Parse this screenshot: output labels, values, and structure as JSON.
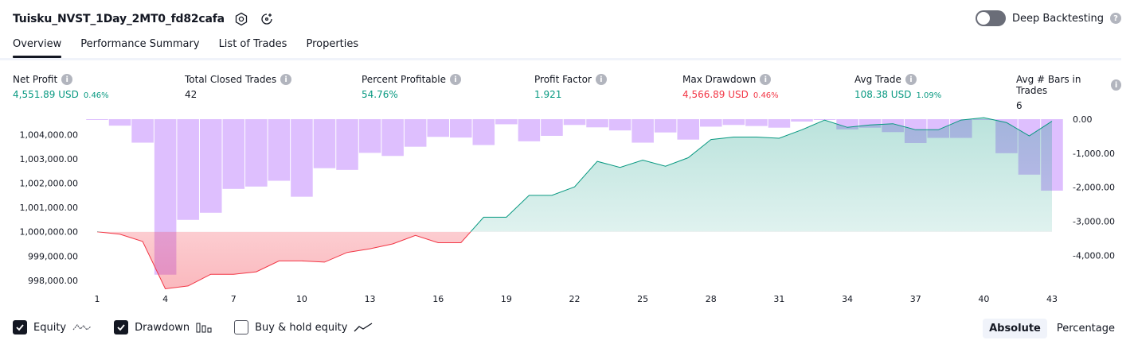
{
  "header": {
    "title": "Tuisku_NVST_1Day_2MT0_fd82cafa"
  },
  "deep_backtesting": {
    "label": "Deep Backtesting"
  },
  "tabs": [
    {
      "label": "Overview"
    },
    {
      "label": "Performance Summary"
    },
    {
      "label": "List of Trades"
    },
    {
      "label": "Properties"
    }
  ],
  "metrics": [
    {
      "label": "Net Profit",
      "value": "4,551.89 USD",
      "pct": "0.46%",
      "color": "green"
    },
    {
      "label": "Total Closed Trades",
      "value": "42",
      "pct": "",
      "color": "black"
    },
    {
      "label": "Percent Profitable",
      "value": "54.76%",
      "pct": "",
      "color": "green"
    },
    {
      "label": "Profit Factor",
      "value": "1.921",
      "pct": "",
      "color": "green"
    },
    {
      "label": "Max Drawdown",
      "value": "4,566.89 USD",
      "pct": "0.46%",
      "color": "red"
    },
    {
      "label": "Avg Trade",
      "value": "108.38 USD",
      "pct": "1.09%",
      "color": "green"
    },
    {
      "label": "Avg # Bars in Trades",
      "value": "6",
      "pct": "",
      "color": "black"
    }
  ],
  "chart_data": {
    "type": "line",
    "x": [
      1,
      2,
      3,
      4,
      5,
      6,
      7,
      8,
      9,
      10,
      11,
      12,
      13,
      14,
      15,
      16,
      17,
      18,
      19,
      20,
      21,
      22,
      23,
      24,
      25,
      26,
      27,
      28,
      29,
      30,
      31,
      32,
      33,
      34,
      35,
      36,
      37,
      38,
      39,
      40,
      41,
      42,
      43
    ],
    "x_tick_labels": [
      "1",
      "4",
      "7",
      "10",
      "13",
      "16",
      "19",
      "22",
      "25",
      "28",
      "31",
      "34",
      "37",
      "40",
      "43"
    ],
    "baseline": 1000000,
    "left_axis": {
      "ticks": [
        "1,004,000.00",
        "1,003,000.00",
        "1,002,000.00",
        "1,001,000.00",
        "1,000,000.00",
        "999,000.00",
        "998,000.00"
      ],
      "ylim": [
        997700,
        1004800
      ]
    },
    "right_axis": {
      "ticks": [
        "0.00",
        "-1,000.00",
        "-2,000.00",
        "-3,000.00",
        "-4,000.00"
      ],
      "ylim": [
        -4950,
        0
      ]
    },
    "series": [
      {
        "values": [
          1000000,
          999900,
          999600,
          997650,
          997770,
          998250,
          998250,
          998350,
          998800,
          998800,
          998750,
          999150,
          999300,
          999500,
          999850,
          999550,
          999550,
          1000600,
          1000600,
          1001500,
          1001500,
          1001850,
          1002900,
          1002650,
          1002950,
          1002700,
          1003050,
          1003800,
          1003900,
          1003900,
          1003850,
          1004200,
          1004600,
          1004300,
          1004400,
          1004450,
          1004200,
          1004200,
          1004600,
          1004700,
          1004500,
          1003950,
          1004550
        ],
        "color_up": "#089981",
        "color_down": "#f23645"
      },
      {
        "values": [
          -20,
          -190,
          -690,
          -4570,
          -2960,
          -2750,
          -2050,
          -1980,
          -1810,
          -2280,
          -1440,
          -1490,
          -990,
          -1080,
          -810,
          -520,
          -540,
          -760,
          -150,
          -650,
          -490,
          -170,
          -240,
          -330,
          -690,
          -390,
          -600,
          -220,
          -170,
          -200,
          -250,
          -70,
          0,
          -300,
          -250,
          -380,
          -700,
          -550,
          -550,
          0,
          -1000,
          -1630,
          -2100
        ],
        "color": "#d8b4fe"
      }
    ]
  },
  "legend": [
    {
      "label": "Equity",
      "checked": true
    },
    {
      "label": "Drawdown",
      "checked": true
    },
    {
      "label": "Buy & hold equity",
      "checked": false
    }
  ],
  "modes": [
    {
      "label": "Absolute",
      "active": true
    },
    {
      "label": "Percentage",
      "active": false
    }
  ]
}
